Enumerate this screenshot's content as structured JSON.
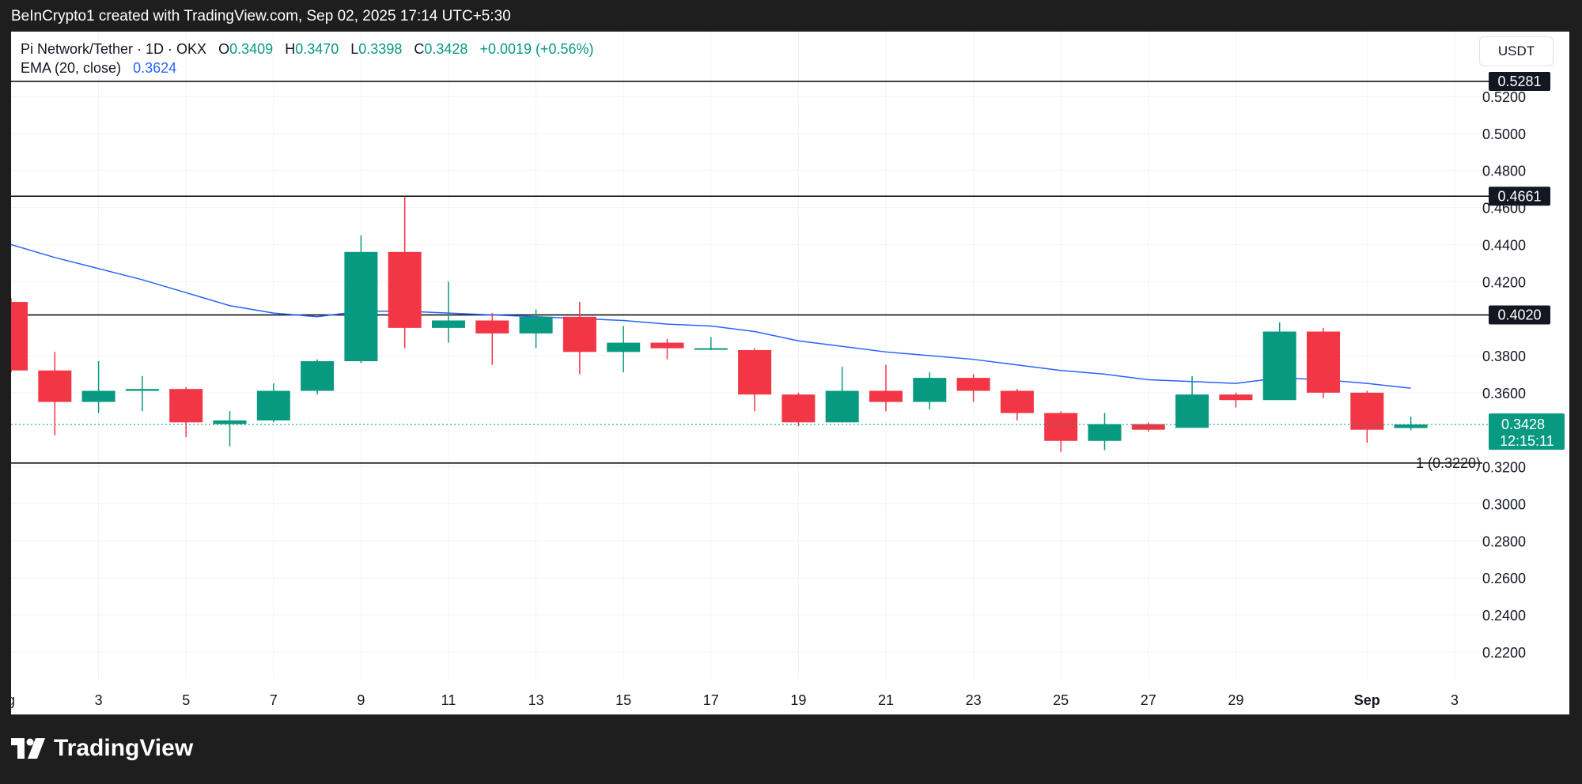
{
  "header": {
    "caption": "BeInCrypto1 created with TradingView.com, Sep 02, 2025 17:14 UTC+5:30"
  },
  "legend": {
    "symbol": "Pi Network/Tether · 1D · OKX",
    "o_label": "O",
    "o": "0.3409",
    "h_label": "H",
    "h": "0.3470",
    "l_label": "L",
    "l": "0.3398",
    "c_label": "C",
    "c": "0.3428",
    "change": "+0.0019 (+0.56%)",
    "ema_label": "EMA (20, close)",
    "ema_value": "0.3624"
  },
  "currency": "USDT",
  "footer": {
    "brand": "TradingView"
  },
  "colors": {
    "up": "#089981",
    "down": "#f23645",
    "ema": "#2962ff",
    "grid": "#f0f3fa",
    "text": "#131722",
    "level": "#000000"
  },
  "chart_data": {
    "type": "candlestick",
    "title": "Pi Network/Tether · 1D · OKX",
    "ylim": [
      0.205,
      0.555
    ],
    "y_ticks": [
      "0.5200",
      "0.5000",
      "0.4800",
      "0.4600",
      "0.4400",
      "0.4200",
      "0.3800",
      "0.3600",
      "0.3200",
      "0.3000",
      "0.2800",
      "0.2600",
      "0.2400",
      "0.2200"
    ],
    "x_ticks": [
      {
        "i": 0,
        "label": "g"
      },
      {
        "i": 2,
        "label": "3"
      },
      {
        "i": 4,
        "label": "5"
      },
      {
        "i": 6,
        "label": "7"
      },
      {
        "i": 8,
        "label": "9"
      },
      {
        "i": 10,
        "label": "11"
      },
      {
        "i": 12,
        "label": "13"
      },
      {
        "i": 14,
        "label": "15"
      },
      {
        "i": 16,
        "label": "17"
      },
      {
        "i": 18,
        "label": "19"
      },
      {
        "i": 20,
        "label": "21"
      },
      {
        "i": 22,
        "label": "23"
      },
      {
        "i": 24,
        "label": "25"
      },
      {
        "i": 26,
        "label": "27"
      },
      {
        "i": 28,
        "label": "29"
      },
      {
        "i": 31,
        "label": "Sep"
      },
      {
        "i": 33,
        "label": "3"
      }
    ],
    "candles": [
      {
        "o": 0.409,
        "h": 0.411,
        "l": 0.371,
        "c": 0.372
      },
      {
        "o": 0.372,
        "h": 0.382,
        "l": 0.337,
        "c": 0.355
      },
      {
        "o": 0.355,
        "h": 0.377,
        "l": 0.349,
        "c": 0.361
      },
      {
        "o": 0.361,
        "h": 0.369,
        "l": 0.35,
        "c": 0.362
      },
      {
        "o": 0.362,
        "h": 0.363,
        "l": 0.336,
        "c": 0.344
      },
      {
        "o": 0.343,
        "h": 0.35,
        "l": 0.331,
        "c": 0.345
      },
      {
        "o": 0.345,
        "h": 0.365,
        "l": 0.344,
        "c": 0.361
      },
      {
        "o": 0.361,
        "h": 0.378,
        "l": 0.359,
        "c": 0.377
      },
      {
        "o": 0.377,
        "h": 0.445,
        "l": 0.376,
        "c": 0.436
      },
      {
        "o": 0.436,
        "h": 0.466,
        "l": 0.384,
        "c": 0.395
      },
      {
        "o": 0.395,
        "h": 0.42,
        "l": 0.387,
        "c": 0.399
      },
      {
        "o": 0.399,
        "h": 0.403,
        "l": 0.375,
        "c": 0.392
      },
      {
        "o": 0.392,
        "h": 0.405,
        "l": 0.384,
        "c": 0.401
      },
      {
        "o": 0.401,
        "h": 0.409,
        "l": 0.37,
        "c": 0.382
      },
      {
        "o": 0.382,
        "h": 0.396,
        "l": 0.371,
        "c": 0.387
      },
      {
        "o": 0.387,
        "h": 0.389,
        "l": 0.378,
        "c": 0.384
      },
      {
        "o": 0.384,
        "h": 0.39,
        "l": 0.383,
        "c": 0.384
      },
      {
        "o": 0.383,
        "h": 0.384,
        "l": 0.35,
        "c": 0.359
      },
      {
        "o": 0.359,
        "h": 0.36,
        "l": 0.342,
        "c": 0.344
      },
      {
        "o": 0.344,
        "h": 0.374,
        "l": 0.344,
        "c": 0.361
      },
      {
        "o": 0.361,
        "h": 0.375,
        "l": 0.35,
        "c": 0.355
      },
      {
        "o": 0.355,
        "h": 0.371,
        "l": 0.351,
        "c": 0.368
      },
      {
        "o": 0.368,
        "h": 0.37,
        "l": 0.355,
        "c": 0.361
      },
      {
        "o": 0.361,
        "h": 0.362,
        "l": 0.345,
        "c": 0.349
      },
      {
        "o": 0.349,
        "h": 0.35,
        "l": 0.328,
        "c": 0.334
      },
      {
        "o": 0.334,
        "h": 0.349,
        "l": 0.329,
        "c": 0.343
      },
      {
        "o": 0.343,
        "h": 0.344,
        "l": 0.339,
        "c": 0.34
      },
      {
        "o": 0.341,
        "h": 0.369,
        "l": 0.341,
        "c": 0.359
      },
      {
        "o": 0.359,
        "h": 0.36,
        "l": 0.352,
        "c": 0.356
      },
      {
        "o": 0.356,
        "h": 0.398,
        "l": 0.356,
        "c": 0.393
      },
      {
        "o": 0.393,
        "h": 0.395,
        "l": 0.357,
        "c": 0.36
      },
      {
        "o": 0.36,
        "h": 0.361,
        "l": 0.333,
        "c": 0.34
      },
      {
        "o": 0.3409,
        "h": 0.347,
        "l": 0.3398,
        "c": 0.3428
      }
    ],
    "ema": [
      0.44,
      0.433,
      0.427,
      0.421,
      0.414,
      0.407,
      0.403,
      0.401,
      0.404,
      0.404,
      0.403,
      0.402,
      0.401,
      0.4,
      0.399,
      0.397,
      0.396,
      0.393,
      0.388,
      0.385,
      0.382,
      0.38,
      0.378,
      0.375,
      0.372,
      0.37,
      0.367,
      0.366,
      0.365,
      0.368,
      0.367,
      0.365,
      0.3624
    ],
    "levels": [
      {
        "value": 0.5281,
        "label": "0.5281"
      },
      {
        "value": 0.4661,
        "label": "0.4661"
      },
      {
        "value": 0.402,
        "label": "0.4020"
      }
    ],
    "support": {
      "value": 0.322,
      "label": "1 (0.3220)"
    },
    "last_price": {
      "value": 0.3428,
      "label": "0.3428",
      "countdown": "12:15:11"
    }
  }
}
